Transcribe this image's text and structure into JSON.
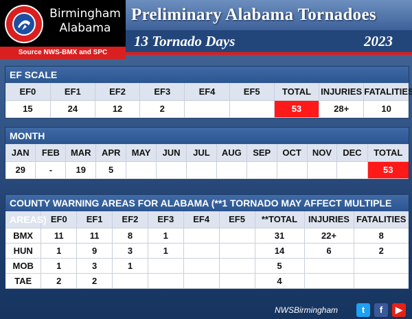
{
  "header": {
    "office_line1": "Birmingham",
    "office_line2": "Alabama",
    "seal_text": "NATIONAL WEATHER SERVICE",
    "source": "Source NWS-BMX and SPC",
    "title": "Preliminary Alabama Tornadoes",
    "days": "13 Tornado Days",
    "year": "2023"
  },
  "ef_scale": {
    "heading": "EF SCALE",
    "columns": [
      "EF0",
      "EF1",
      "EF2",
      "EF3",
      "EF4",
      "EF5",
      "TOTAL",
      "INJURIES",
      "FATALITIES"
    ],
    "values": [
      "15",
      "24",
      "12",
      "2",
      "",
      "",
      "53",
      "28+",
      "10"
    ]
  },
  "month": {
    "heading": "MONTH",
    "columns": [
      "JAN",
      "FEB",
      "MAR",
      "APR",
      "MAY",
      "JUN",
      "JUL",
      "AUG",
      "SEP",
      "OCT",
      "NOV",
      "DEC",
      "TOTAL"
    ],
    "values": [
      "29",
      "-",
      "19",
      "5",
      "",
      "",
      "",
      "",
      "",
      "",
      "",
      "",
      "53"
    ]
  },
  "cwa": {
    "heading": "COUNTY WARNING AREAS FOR ALABAMA (**1 TORNADO MAY AFFECT MULTIPLE AREAS)",
    "columns": [
      "",
      "EF0",
      "EF1",
      "EF2",
      "EF3",
      "EF4",
      "EF5",
      "**TOTAL",
      "INJURIES",
      "FATALITIES"
    ],
    "rows": [
      [
        "BMX",
        "11",
        "11",
        "8",
        "1",
        "",
        "",
        "31",
        "22+",
        "8"
      ],
      [
        "HUN",
        "1",
        "9",
        "3",
        "1",
        "",
        "",
        "14",
        "6",
        "2"
      ],
      [
        "MOB",
        "1",
        "3",
        "1",
        "",
        "",
        "",
        "5",
        "",
        ""
      ],
      [
        "TAE",
        "2",
        "2",
        "",
        "",
        "",
        "",
        "4",
        "",
        ""
      ]
    ]
  },
  "footer": {
    "handle": "NWSBirmingham",
    "twitter_glyph": "t",
    "facebook_glyph": "f",
    "youtube_glyph": "▶"
  },
  "colors": {
    "highlight_red": "#ff1a1a",
    "header_blue": "#2b5590"
  }
}
